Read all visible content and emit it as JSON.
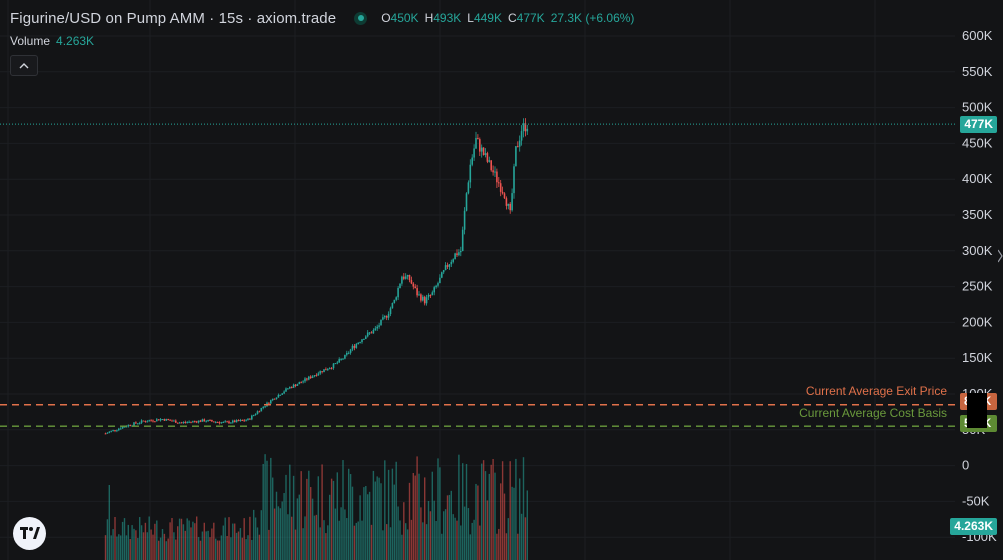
{
  "header": {
    "title": "Figurine/USD on Pump AMM · 15s · axiom.trade",
    "ohlc": [
      {
        "key": "O",
        "value": "450K"
      },
      {
        "key": "H",
        "value": "493K"
      },
      {
        "key": "L",
        "value": "449K"
      },
      {
        "key": "C",
        "value": "477K"
      }
    ],
    "change": "27.3K (+6.06%)"
  },
  "volume_legend": {
    "label": "Volume",
    "value": "4.263K"
  },
  "colors": {
    "background": "#131416",
    "up": "#26a69a",
    "down": "#ef5350",
    "exit_line": "#e0714a",
    "cost_line": "#6a9a3c"
  },
  "price_axis": {
    "ticks": [
      "600K",
      "550K",
      "500K",
      "450K",
      "400K",
      "350K",
      "300K",
      "250K",
      "200K",
      "150K",
      "100K",
      "50K",
      "0",
      "-50K",
      "-100K"
    ]
  },
  "last_price_badge": "477K",
  "volume_badge": "4.263K",
  "lines": {
    "exit": {
      "label": "Current Average Exit Price",
      "badge": "8…K"
    },
    "cost": {
      "label": "Current Average Cost Basis",
      "badge": "5…K"
    }
  },
  "icons": {
    "collapse": "chevron-up-icon",
    "logo": "tradingview-logo"
  },
  "chart_data": {
    "type": "candlestick",
    "price_range": [
      -125000,
      625000
    ],
    "last_price": 477000,
    "exit_price_level": 85000,
    "cost_basis_level": 55000,
    "series": [
      {
        "name": "Price",
        "anchors": [
          [
            0,
            45000
          ],
          [
            10,
            55000
          ],
          [
            20,
            62000
          ],
          [
            30,
            65000
          ],
          [
            40,
            60000
          ],
          [
            52,
            63000
          ],
          [
            62,
            60000
          ],
          [
            70,
            62000
          ],
          [
            75,
            64000
          ],
          [
            82,
            80000
          ],
          [
            88,
            93000
          ],
          [
            96,
            108000
          ],
          [
            104,
            118000
          ],
          [
            112,
            130000
          ],
          [
            120,
            140000
          ],
          [
            126,
            152000
          ],
          [
            130,
            165000
          ],
          [
            136,
            180000
          ],
          [
            142,
            190000
          ],
          [
            148,
            210000
          ],
          [
            152,
            230000
          ],
          [
            156,
            265000
          ],
          [
            160,
            260000
          ],
          [
            164,
            240000
          ],
          [
            168,
            230000
          ],
          [
            172,
            240000
          ],
          [
            176,
            260000
          ],
          [
            180,
            280000
          ],
          [
            184,
            295000
          ],
          [
            187,
            300000
          ],
          [
            190,
            380000
          ],
          [
            192,
            420000
          ],
          [
            195,
            455000
          ],
          [
            198,
            440000
          ],
          [
            202,
            420000
          ],
          [
            206,
            400000
          ],
          [
            210,
            380000
          ],
          [
            213,
            350000
          ],
          [
            216,
            440000
          ],
          [
            219,
            470000
          ],
          [
            222,
            477000
          ]
        ]
      }
    ]
  }
}
